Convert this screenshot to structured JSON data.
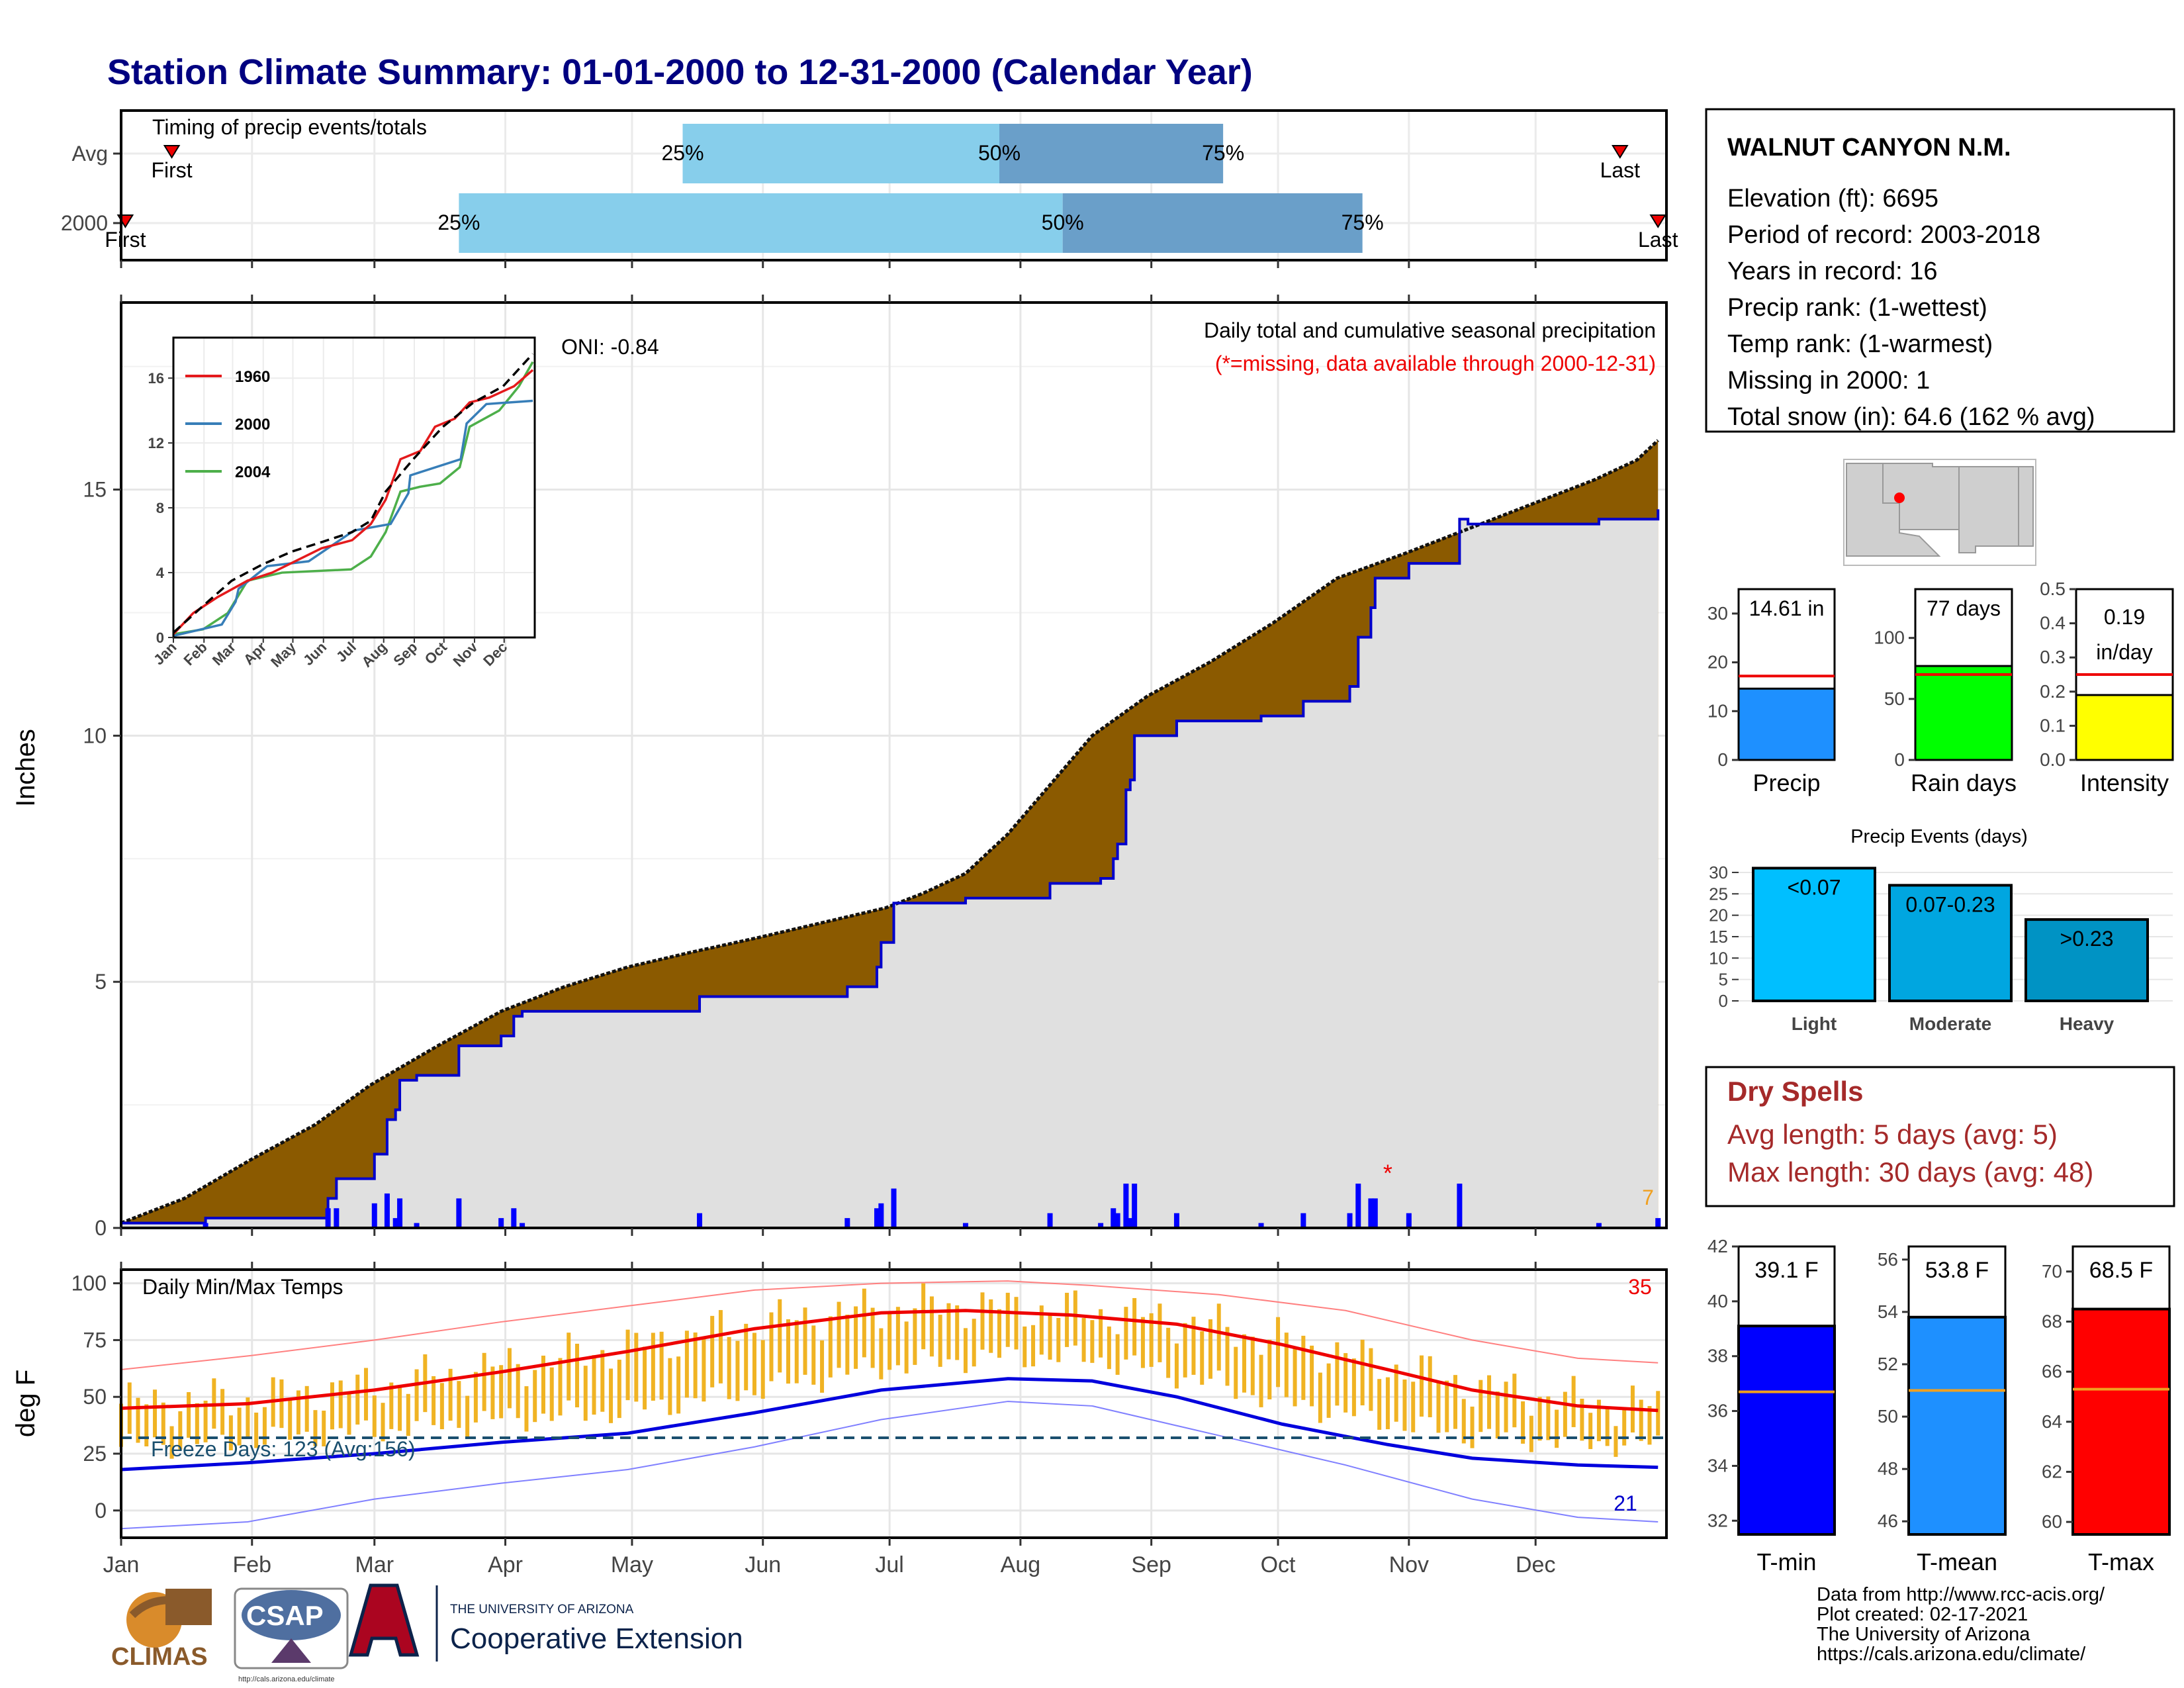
{
  "title": "Station Climate Summary: 01-01-2000 to 12-31-2000 (Calendar Year)",
  "station": {
    "name": "WALNUT CANYON N.M.",
    "lines": [
      "Elevation (ft): 6695",
      "Period of record: 2003-2018",
      "Years in record: 16",
      "Precip rank:  (1-wettest)",
      "Temp rank:  (1-warmest)",
      "Missing in 2000: 1",
      "Total snow (in): 64.6 (162 % avg)"
    ]
  },
  "months": [
    "Jan",
    "Feb",
    "Mar",
    "Apr",
    "May",
    "Jun",
    "Jul",
    "Aug",
    "Sep",
    "Oct",
    "Nov",
    "Dec"
  ],
  "timing": {
    "label": "Timing of precip events/totals",
    "rows": [
      {
        "name": "Avg",
        "first_label": "First",
        "last_label": "Last",
        "first_day": 12,
        "last_day": 355,
        "p25": 133,
        "p50": 208,
        "p75": 261
      },
      {
        "name": "2000",
        "first_label": "First",
        "last_label": "Last",
        "first_day": 1,
        "last_day": 364,
        "p25": 80,
        "p50": 223,
        "p75": 294
      }
    ],
    "p25_label": "25%",
    "p50_label": "50%",
    "p75_label": "75%"
  },
  "precip_chart": {
    "ylabel": "Inches",
    "yticks": [
      0,
      5,
      10,
      15
    ],
    "title1": "Daily total and cumulative seasonal precipitation",
    "title2": "(*=missing, data available through 2000-12-31)",
    "oni": "ONI: -0.84",
    "count_label": "7",
    "missing_marker": "*",
    "cum_avg": [
      [
        0,
        0.1
      ],
      [
        15,
        0.6
      ],
      [
        31,
        1.4
      ],
      [
        46,
        2.1
      ],
      [
        59,
        2.9
      ],
      [
        75,
        3.7
      ],
      [
        90,
        4.4
      ],
      [
        105,
        4.9
      ],
      [
        120,
        5.3
      ],
      [
        135,
        5.6
      ],
      [
        151,
        5.9
      ],
      [
        166,
        6.2
      ],
      [
        181,
        6.5
      ],
      [
        190,
        6.8
      ],
      [
        200,
        7.2
      ],
      [
        210,
        8.0
      ],
      [
        220,
        9.0
      ],
      [
        230,
        10.0
      ],
      [
        243,
        10.8
      ],
      [
        258,
        11.5
      ],
      [
        273,
        12.3
      ],
      [
        288,
        13.2
      ],
      [
        304,
        13.7
      ],
      [
        319,
        14.2
      ],
      [
        334,
        14.7
      ],
      [
        349,
        15.2
      ],
      [
        359,
        15.6
      ],
      [
        364,
        16.0
      ]
    ],
    "cum_year": [
      [
        0,
        0.1
      ],
      [
        20,
        0.2
      ],
      [
        48,
        0.2
      ],
      [
        49,
        0.6
      ],
      [
        51,
        1.0
      ],
      [
        58,
        1.0
      ],
      [
        60,
        1.5
      ],
      [
        63,
        2.2
      ],
      [
        65,
        2.4
      ],
      [
        66,
        3.0
      ],
      [
        70,
        3.1
      ],
      [
        75,
        3.1
      ],
      [
        80,
        3.7
      ],
      [
        88,
        3.7
      ],
      [
        90,
        3.9
      ],
      [
        93,
        4.3
      ],
      [
        95,
        4.4
      ],
      [
        135,
        4.4
      ],
      [
        137,
        4.7
      ],
      [
        170,
        4.7
      ],
      [
        172,
        4.9
      ],
      [
        178,
        4.9
      ],
      [
        179,
        5.3
      ],
      [
        180,
        5.8
      ],
      [
        183,
        6.6
      ],
      [
        197,
        6.6
      ],
      [
        200,
        6.7
      ],
      [
        215,
        6.7
      ],
      [
        220,
        7.0
      ],
      [
        232,
        7.1
      ],
      [
        235,
        7.5
      ],
      [
        236,
        7.8
      ],
      [
        238,
        8.9
      ],
      [
        239,
        9.1
      ],
      [
        240,
        10.0
      ],
      [
        250,
        10.3
      ],
      [
        270,
        10.4
      ],
      [
        280,
        10.7
      ],
      [
        291,
        11.0
      ],
      [
        293,
        12.0
      ],
      [
        296,
        12.6
      ],
      [
        297,
        13.2
      ],
      [
        305,
        13.5
      ],
      [
        317,
        14.4
      ],
      [
        319,
        14.3
      ],
      [
        345,
        14.3
      ],
      [
        350,
        14.4
      ],
      [
        364,
        14.6
      ]
    ]
  },
  "inset": {
    "yticks": [
      0,
      4,
      8,
      12,
      16
    ],
    "months": [
      "Jan",
      "Feb",
      "Mar",
      "Apr",
      "May",
      "Jun",
      "Jul",
      "Aug",
      "Sep",
      "Oct",
      "Nov",
      "Dec"
    ],
    "legend": [
      {
        "name": "1960",
        "color": "#e41a1c"
      },
      {
        "name": "2000",
        "color": "#377eb8"
      },
      {
        "name": "2004",
        "color": "#4daf4a"
      }
    ],
    "avg": [
      [
        0,
        0.3
      ],
      [
        31,
        2.0
      ],
      [
        59,
        3.5
      ],
      [
        90,
        4.5
      ],
      [
        120,
        5.3
      ],
      [
        151,
        5.9
      ],
      [
        181,
        6.5
      ],
      [
        200,
        7.2
      ],
      [
        215,
        9.0
      ],
      [
        243,
        11.0
      ],
      [
        273,
        13.0
      ],
      [
        304,
        14.5
      ],
      [
        334,
        15.5
      ],
      [
        364,
        17.5
      ]
    ],
    "series_1960": [
      [
        0,
        0.2
      ],
      [
        20,
        1.5
      ],
      [
        45,
        2.5
      ],
      [
        60,
        3.0
      ],
      [
        75,
        3.5
      ],
      [
        100,
        4.0
      ],
      [
        150,
        5.5
      ],
      [
        181,
        6.0
      ],
      [
        200,
        7.0
      ],
      [
        215,
        8.5
      ],
      [
        230,
        11.0
      ],
      [
        250,
        11.5
      ],
      [
        265,
        13.0
      ],
      [
        285,
        13.5
      ],
      [
        300,
        14.5
      ],
      [
        320,
        14.8
      ],
      [
        345,
        15.5
      ],
      [
        364,
        16.5
      ]
    ],
    "series_2000": [
      [
        0,
        0.1
      ],
      [
        49,
        0.8
      ],
      [
        63,
        2.2
      ],
      [
        66,
        3.0
      ],
      [
        95,
        4.4
      ],
      [
        137,
        4.7
      ],
      [
        183,
        6.6
      ],
      [
        220,
        7.0
      ],
      [
        238,
        8.9
      ],
      [
        240,
        10.0
      ],
      [
        291,
        11.0
      ],
      [
        297,
        13.2
      ],
      [
        317,
        14.4
      ],
      [
        364,
        14.6
      ]
    ],
    "series_2004": [
      [
        0,
        0.2
      ],
      [
        30,
        0.5
      ],
      [
        55,
        1.5
      ],
      [
        75,
        3.5
      ],
      [
        110,
        4.0
      ],
      [
        180,
        4.2
      ],
      [
        200,
        5.0
      ],
      [
        215,
        6.5
      ],
      [
        230,
        9.0
      ],
      [
        250,
        9.3
      ],
      [
        270,
        9.5
      ],
      [
        290,
        10.5
      ],
      [
        300,
        13.0
      ],
      [
        330,
        14.0
      ],
      [
        350,
        15.5
      ],
      [
        364,
        17.0
      ]
    ]
  },
  "temp_chart": {
    "ylabel": "deg F",
    "title": "Daily Min/Max Temps",
    "yticks": [
      0,
      25,
      50,
      75,
      100
    ],
    "freeze_label": "Freeze Days: 123 (Avg:156)",
    "hot_count": "35",
    "cold_count": "21",
    "freeze_line": 32,
    "avg_max": [
      [
        0,
        45
      ],
      [
        30,
        47
      ],
      [
        60,
        53
      ],
      [
        90,
        61
      ],
      [
        120,
        70
      ],
      [
        150,
        80
      ],
      [
        180,
        87
      ],
      [
        200,
        88
      ],
      [
        225,
        86
      ],
      [
        250,
        82
      ],
      [
        275,
        73
      ],
      [
        300,
        62
      ],
      [
        320,
        53
      ],
      [
        345,
        46
      ],
      [
        364,
        44
      ]
    ],
    "avg_min": [
      [
        0,
        18
      ],
      [
        30,
        21
      ],
      [
        60,
        25
      ],
      [
        90,
        30
      ],
      [
        120,
        34
      ],
      [
        150,
        43
      ],
      [
        180,
        53
      ],
      [
        210,
        58
      ],
      [
        230,
        57
      ],
      [
        250,
        50
      ],
      [
        275,
        38
      ],
      [
        300,
        29
      ],
      [
        320,
        23
      ],
      [
        345,
        20
      ],
      [
        364,
        19
      ]
    ],
    "rec_max": [
      [
        0,
        62
      ],
      [
        30,
        68
      ],
      [
        60,
        75
      ],
      [
        90,
        83
      ],
      [
        120,
        90
      ],
      [
        150,
        97
      ],
      [
        180,
        100
      ],
      [
        210,
        101
      ],
      [
        230,
        99
      ],
      [
        260,
        95
      ],
      [
        290,
        88
      ],
      [
        320,
        75
      ],
      [
        345,
        67
      ],
      [
        364,
        65
      ]
    ],
    "rec_min": [
      [
        0,
        -8
      ],
      [
        30,
        -5
      ],
      [
        60,
        5
      ],
      [
        90,
        12
      ],
      [
        120,
        18
      ],
      [
        150,
        28
      ],
      [
        180,
        40
      ],
      [
        210,
        48
      ],
      [
        230,
        46
      ],
      [
        260,
        33
      ],
      [
        290,
        20
      ],
      [
        320,
        5
      ],
      [
        345,
        -3
      ],
      [
        364,
        -5
      ]
    ]
  },
  "summary_bars": {
    "precip": {
      "label": "Precip",
      "value_label": "14.61 in",
      "value": 14.61,
      "avg": 17.2,
      "ymax": 35,
      "yticks": [
        0,
        10,
        20,
        30
      ],
      "color": "#1e90ff"
    },
    "raindays": {
      "label": "Rain days",
      "value_label": "77 days",
      "value": 77,
      "avg": 70,
      "ymax": 140,
      "yticks": [
        0,
        50,
        100
      ],
      "color": "#00ff00"
    },
    "intensity": {
      "label": "Intensity",
      "value_label1": "0.19",
      "value_label2": "in/day",
      "value": 0.19,
      "avg": 0.25,
      "ymax": 0.5,
      "yticks": [
        0.0,
        0.1,
        0.2,
        0.3,
        0.4,
        0.5
      ],
      "color": "#ffff00"
    }
  },
  "events": {
    "title": "Precip Events (days)",
    "yticks": [
      0,
      5,
      10,
      15,
      20,
      25,
      30
    ],
    "bars": [
      {
        "name": "Light",
        "value": 31,
        "label": "<0.07",
        "color": "#00bfff"
      },
      {
        "name": "Moderate",
        "value": 27,
        "label": "0.07-0.23",
        "color": "#00a6e0"
      },
      {
        "name": "Heavy",
        "value": 19,
        "label": ">0.23",
        "color": "#0093c4"
      }
    ]
  },
  "dry_spells": {
    "title": "Dry Spells",
    "line1": "Avg length: 5 days (avg: 5)",
    "line2": "Max length: 30 days (avg: 48)"
  },
  "temp_bars": [
    {
      "label": "T-min",
      "value_label": "39.1 F",
      "value": 39.1,
      "avg": 36.7,
      "ymin": 31.5,
      "ymax": 42,
      "yticks": [
        32,
        34,
        36,
        38,
        40,
        42
      ],
      "color": "#0000ff"
    },
    {
      "label": "T-mean",
      "value_label": "53.8 F",
      "value": 53.8,
      "avg": 51.0,
      "ymin": 45.5,
      "ymax": 56.5,
      "yticks": [
        46,
        48,
        50,
        52,
        54,
        56
      ],
      "color": "#1e90ff"
    },
    {
      "label": "T-max",
      "value_label": "68.5 F",
      "value": 68.5,
      "avg": 65.3,
      "ymin": 59.5,
      "ymax": 71,
      "yticks": [
        60,
        62,
        64,
        66,
        68,
        70
      ],
      "color": "#ff0000"
    }
  ],
  "footer": {
    "lines": [
      "Data from http://www.rcc-acis.org/",
      "Plot created: 02-17-2021",
      "The University of Arizona",
      "https://cals.arizona.edu/climate/"
    ],
    "logo_climas": "CLIMAS",
    "logo_csap": "CSAP",
    "csap_url": "http://cals.arizona.edu/climate",
    "ua_line1": "THE UNIVERSITY OF ARIZONA",
    "ua_line2": "Cooperative Extension"
  },
  "colors": {
    "title": "#000080",
    "brown": "#8b5a00",
    "grey": "#e0e0e0",
    "dry": "#a52a2a",
    "q1": "#87ceeb",
    "q2": "#6a9fc9",
    "temp_bar": "#f0b323"
  }
}
